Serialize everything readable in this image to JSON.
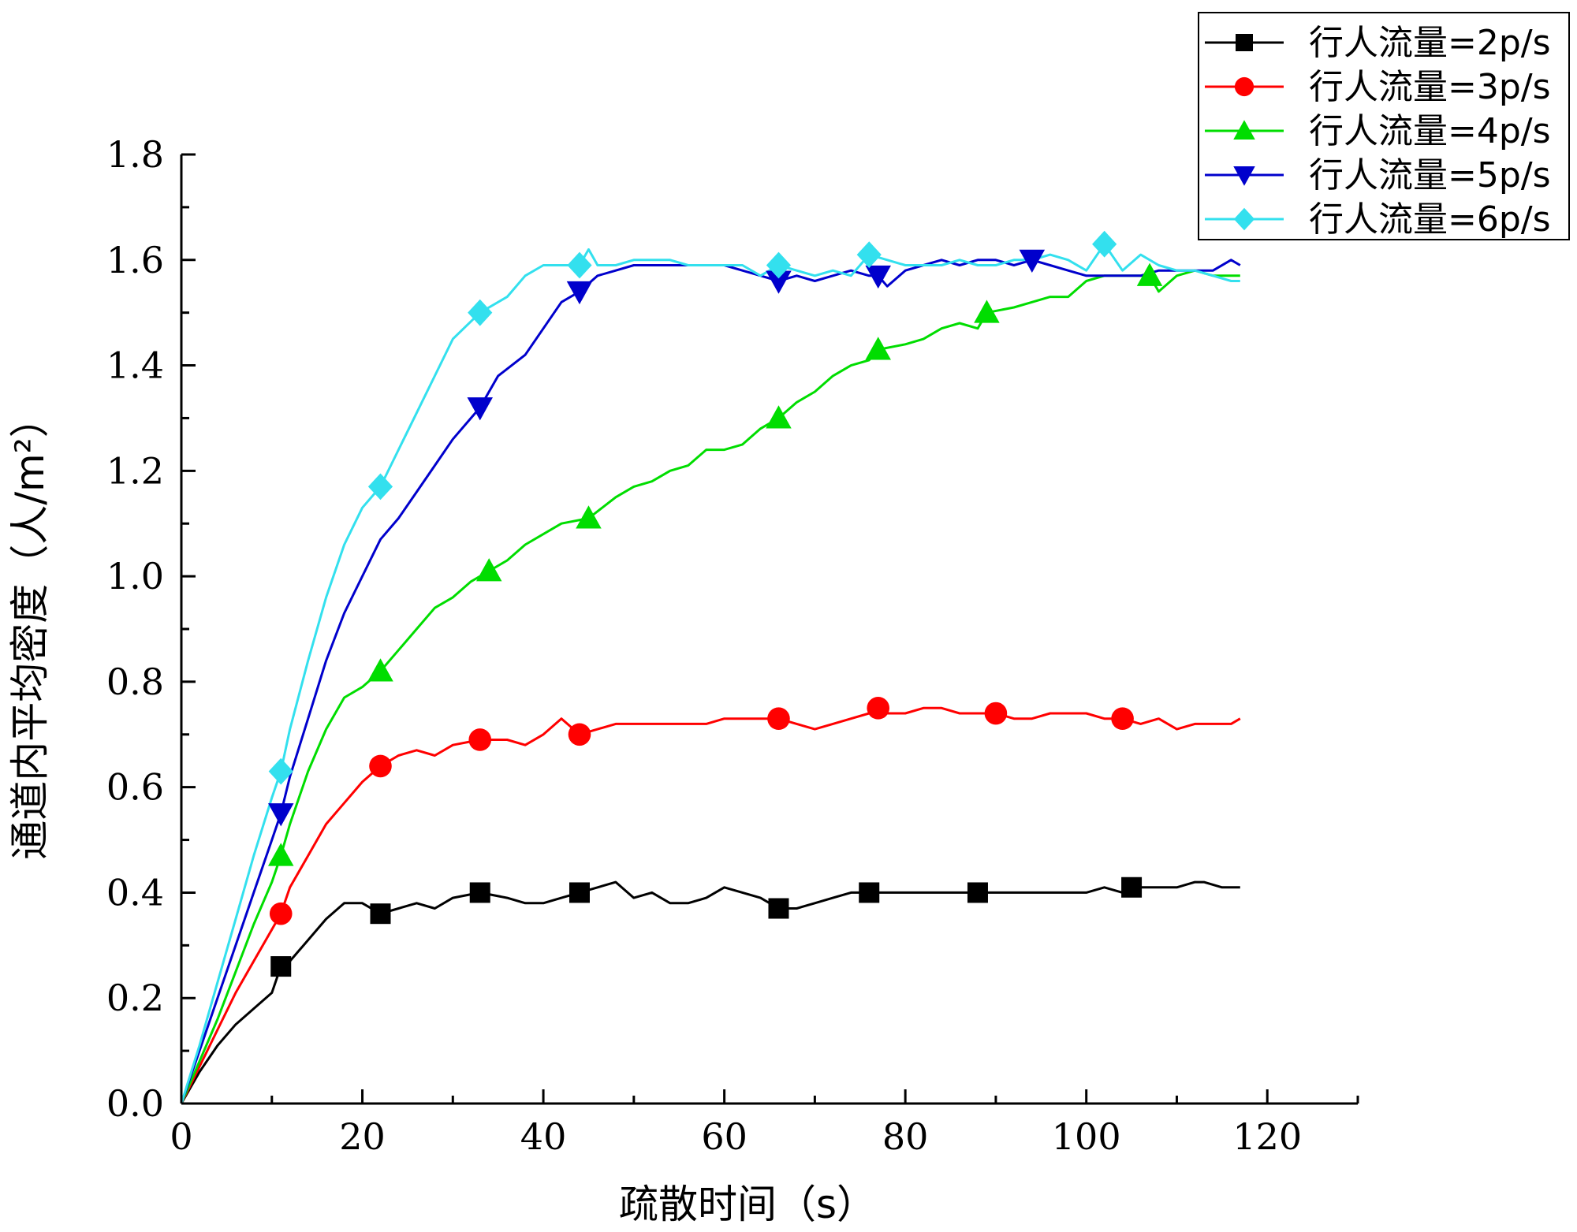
{
  "chart_data": {
    "type": "line",
    "title": "",
    "xlabel": "疏散时间（s）",
    "ylabel": "通道内平均密度（人/m²）",
    "xlim": [
      0,
      130
    ],
    "ylim": [
      0,
      1.8
    ],
    "xticks": [
      "0",
      "20",
      "40",
      "60",
      "80",
      "100",
      "120"
    ],
    "yticks": [
      "0.0",
      "0.2",
      "0.4",
      "0.6",
      "0.8",
      "1.0",
      "1.2",
      "1.4",
      "1.6",
      "1.8"
    ],
    "grid": false,
    "legend_position": "top-right",
    "series": [
      {
        "name": "行人流量=2p/s",
        "color": "#000000",
        "marker": "square",
        "x": [
          0,
          2,
          4,
          6,
          8,
          10,
          11,
          12,
          14,
          16,
          18,
          20,
          22,
          24,
          26,
          28,
          30,
          33,
          36,
          38,
          40,
          42,
          44,
          46,
          48,
          50,
          52,
          54,
          56,
          58,
          60,
          62,
          64,
          66,
          68,
          70,
          72,
          74,
          76,
          78,
          80,
          82,
          84,
          86,
          88,
          90,
          92,
          94,
          96,
          98,
          100,
          102,
          104,
          105,
          106,
          108,
          110,
          112,
          113,
          115,
          117
        ],
        "y": [
          0,
          0.06,
          0.11,
          0.15,
          0.18,
          0.21,
          0.26,
          0.27,
          0.31,
          0.35,
          0.38,
          0.38,
          0.36,
          0.37,
          0.38,
          0.37,
          0.39,
          0.4,
          0.39,
          0.38,
          0.38,
          0.39,
          0.4,
          0.41,
          0.42,
          0.39,
          0.4,
          0.38,
          0.38,
          0.39,
          0.41,
          0.4,
          0.39,
          0.37,
          0.37,
          0.38,
          0.39,
          0.4,
          0.4,
          0.4,
          0.4,
          0.4,
          0.4,
          0.4,
          0.4,
          0.4,
          0.4,
          0.4,
          0.4,
          0.4,
          0.4,
          0.41,
          0.4,
          0.41,
          0.41,
          0.41,
          0.41,
          0.42,
          0.42,
          0.41,
          0.41
        ],
        "marker_x": [
          11,
          22,
          33,
          44,
          66,
          76,
          88,
          105
        ],
        "marker_y": [
          0.26,
          0.36,
          0.4,
          0.4,
          0.37,
          0.4,
          0.4,
          0.41
        ]
      },
      {
        "name": "行人流量=3p/s",
        "color": "#ff0000",
        "marker": "circle",
        "x": [
          0,
          2,
          4,
          6,
          8,
          10,
          11,
          12,
          14,
          16,
          18,
          20,
          22,
          24,
          26,
          28,
          30,
          33,
          36,
          38,
          40,
          42,
          44,
          46,
          48,
          50,
          52,
          54,
          56,
          58,
          60,
          62,
          64,
          66,
          68,
          70,
          72,
          74,
          76,
          77,
          78,
          80,
          82,
          84,
          86,
          88,
          90,
          92,
          94,
          96,
          98,
          100,
          102,
          104,
          106,
          108,
          110,
          112,
          114,
          116,
          117
        ],
        "y": [
          0,
          0.07,
          0.14,
          0.21,
          0.27,
          0.33,
          0.36,
          0.41,
          0.47,
          0.53,
          0.57,
          0.61,
          0.64,
          0.66,
          0.67,
          0.66,
          0.68,
          0.69,
          0.69,
          0.68,
          0.7,
          0.73,
          0.7,
          0.71,
          0.72,
          0.72,
          0.72,
          0.72,
          0.72,
          0.72,
          0.73,
          0.73,
          0.73,
          0.73,
          0.72,
          0.71,
          0.72,
          0.73,
          0.74,
          0.75,
          0.74,
          0.74,
          0.75,
          0.75,
          0.74,
          0.74,
          0.74,
          0.73,
          0.73,
          0.74,
          0.74,
          0.74,
          0.73,
          0.73,
          0.72,
          0.73,
          0.71,
          0.72,
          0.72,
          0.72,
          0.73
        ],
        "marker_x": [
          11,
          22,
          33,
          44,
          66,
          77,
          90,
          104
        ],
        "marker_y": [
          0.36,
          0.64,
          0.69,
          0.7,
          0.73,
          0.75,
          0.74,
          0.73
        ]
      },
      {
        "name": "行人流量=4p/s",
        "color": "#00dd00",
        "marker": "triangle-up",
        "x": [
          0,
          2,
          4,
          6,
          8,
          10,
          11,
          12,
          14,
          16,
          18,
          20,
          22,
          24,
          26,
          28,
          30,
          32,
          34,
          36,
          38,
          40,
          42,
          45,
          48,
          50,
          52,
          54,
          56,
          58,
          60,
          62,
          64,
          66,
          68,
          70,
          72,
          74,
          76,
          77,
          80,
          82,
          84,
          86,
          88,
          89,
          92,
          94,
          96,
          98,
          100,
          102,
          104,
          106,
          107,
          108,
          110,
          112,
          114,
          116,
          117
        ],
        "y": [
          0,
          0.08,
          0.16,
          0.25,
          0.34,
          0.42,
          0.47,
          0.53,
          0.63,
          0.71,
          0.77,
          0.79,
          0.82,
          0.86,
          0.9,
          0.94,
          0.96,
          0.99,
          1.01,
          1.03,
          1.06,
          1.08,
          1.1,
          1.11,
          1.15,
          1.17,
          1.18,
          1.2,
          1.21,
          1.24,
          1.24,
          1.25,
          1.28,
          1.3,
          1.33,
          1.35,
          1.38,
          1.4,
          1.41,
          1.43,
          1.44,
          1.45,
          1.47,
          1.48,
          1.47,
          1.5,
          1.51,
          1.52,
          1.53,
          1.53,
          1.56,
          1.57,
          1.57,
          1.57,
          1.57,
          1.54,
          1.57,
          1.58,
          1.57,
          1.57,
          1.57
        ],
        "marker_x": [
          11,
          22,
          34,
          45,
          66,
          77,
          89,
          107
        ],
        "marker_y": [
          0.47,
          0.82,
          1.01,
          1.11,
          1.3,
          1.43,
          1.5,
          1.57
        ]
      },
      {
        "name": "行人流量=5p/s",
        "color": "#0000cc",
        "marker": "triangle-down",
        "x": [
          0,
          2,
          4,
          6,
          8,
          10,
          11,
          12,
          14,
          16,
          18,
          20,
          22,
          24,
          26,
          28,
          30,
          33,
          35,
          38,
          40,
          42,
          44,
          46,
          48,
          50,
          52,
          54,
          56,
          58,
          60,
          62,
          64,
          66,
          68,
          70,
          72,
          74,
          76,
          77,
          78,
          80,
          82,
          84,
          86,
          88,
          90,
          92,
          94,
          96,
          98,
          100,
          102,
          104,
          106,
          108,
          110,
          112,
          114,
          116,
          117
        ],
        "y": [
          0,
          0.1,
          0.2,
          0.3,
          0.4,
          0.5,
          0.55,
          0.62,
          0.73,
          0.84,
          0.93,
          1.0,
          1.07,
          1.11,
          1.16,
          1.21,
          1.26,
          1.32,
          1.38,
          1.42,
          1.47,
          1.52,
          1.54,
          1.57,
          1.58,
          1.59,
          1.59,
          1.59,
          1.59,
          1.59,
          1.59,
          1.58,
          1.57,
          1.56,
          1.57,
          1.56,
          1.57,
          1.58,
          1.57,
          1.57,
          1.55,
          1.58,
          1.59,
          1.6,
          1.59,
          1.6,
          1.6,
          1.59,
          1.6,
          1.59,
          1.58,
          1.57,
          1.57,
          1.57,
          1.57,
          1.58,
          1.58,
          1.58,
          1.58,
          1.6,
          1.59
        ],
        "marker_x": [
          11,
          33,
          44,
          66,
          77,
          94
        ],
        "marker_y": [
          0.55,
          1.32,
          1.54,
          1.56,
          1.57,
          1.6
        ]
      },
      {
        "name": "行人流量=6p/s",
        "color": "#33e0ee",
        "marker": "diamond",
        "x": [
          0,
          2,
          4,
          6,
          8,
          10,
          11,
          12,
          14,
          16,
          18,
          20,
          22,
          24,
          26,
          28,
          30,
          33,
          36,
          38,
          40,
          42,
          44,
          45,
          46,
          48,
          50,
          52,
          54,
          56,
          58,
          60,
          62,
          64,
          66,
          68,
          70,
          72,
          74,
          76,
          78,
          80,
          82,
          84,
          86,
          88,
          90,
          92,
          94,
          96,
          98,
          100,
          102,
          104,
          106,
          108,
          110,
          112,
          114,
          116,
          117
        ],
        "y": [
          0,
          0.11,
          0.23,
          0.35,
          0.47,
          0.58,
          0.63,
          0.71,
          0.84,
          0.96,
          1.06,
          1.13,
          1.17,
          1.24,
          1.31,
          1.38,
          1.45,
          1.5,
          1.53,
          1.57,
          1.59,
          1.59,
          1.59,
          1.62,
          1.59,
          1.59,
          1.6,
          1.6,
          1.6,
          1.59,
          1.59,
          1.59,
          1.59,
          1.57,
          1.59,
          1.58,
          1.57,
          1.58,
          1.57,
          1.61,
          1.6,
          1.59,
          1.59,
          1.59,
          1.6,
          1.59,
          1.59,
          1.6,
          1.6,
          1.61,
          1.6,
          1.58,
          1.63,
          1.58,
          1.61,
          1.59,
          1.58,
          1.58,
          1.57,
          1.56,
          1.56
        ],
        "marker_x": [
          11,
          22,
          33,
          44,
          66,
          76,
          102
        ],
        "marker_y": [
          0.63,
          1.17,
          1.5,
          1.59,
          1.59,
          1.61,
          1.63
        ]
      }
    ]
  }
}
